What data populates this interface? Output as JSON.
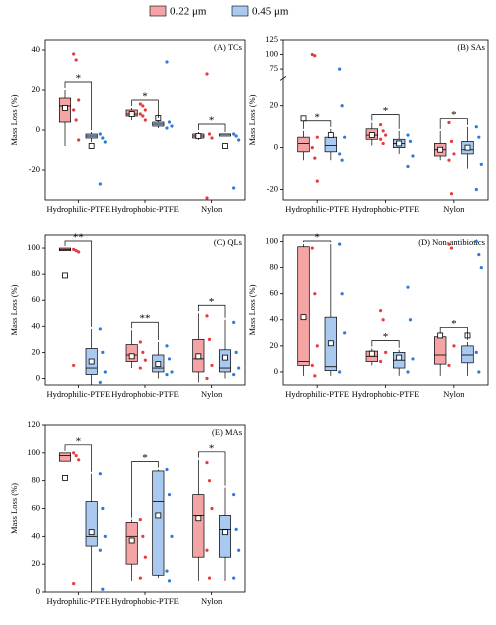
{
  "chart_data": [
    {
      "type": "box",
      "title": "(A) TCs",
      "ylabel": "Mass Loss (%)",
      "categories": [
        "Hydrophilic-PTFE",
        "Hydrophobic-PTFE",
        "Nylon"
      ],
      "ylim": [
        -35,
        45
      ],
      "yticks": [
        -20,
        0,
        20,
        40
      ],
      "significance": [
        "*",
        "*",
        "*"
      ],
      "series": [
        {
          "name": "0.22 μm",
          "color": "#e83a3a",
          "fill": "#f4a4a4",
          "boxes": [
            {
              "min": -8,
              "q1": 4,
              "median": 12,
              "q3": 16,
              "max": 20,
              "mean": 11,
              "points": [
                38,
                35,
                15,
                10,
                5,
                -5
              ]
            },
            {
              "min": 5,
              "q1": 7,
              "median": 8,
              "q3": 10,
              "max": 11,
              "mean": 8,
              "points": [
                13,
                12,
                10,
                8,
                7,
                5
              ]
            },
            {
              "min": -5,
              "q1": -4,
              "median": -3,
              "q3": -2,
              "max": -1,
              "mean": -3,
              "points": [
                28,
                -2,
                -4,
                -34
              ]
            }
          ]
        },
        {
          "name": "0.45 μm",
          "color": "#2e7bd6",
          "fill": "#a9c9f0",
          "boxes": [
            {
              "min": -6,
              "q1": -4,
              "median": -3,
              "q3": -2,
              "max": -1,
              "mean": -8,
              "points": [
                -2,
                -4,
                -6,
                -27
              ]
            },
            {
              "min": 1,
              "q1": 2,
              "median": 3,
              "q3": 4,
              "max": 5,
              "mean": 6,
              "points": [
                34,
                4,
                2,
                1
              ]
            },
            {
              "min": -3,
              "q1": -3,
              "median": -2,
              "q3": -2,
              "max": -2,
              "mean": -8,
              "points": [
                -2,
                -3,
                -5,
                -29
              ]
            }
          ]
        }
      ]
    },
    {
      "type": "box",
      "title": "(B) SAs",
      "ylabel": "Mass Loss (%)",
      "categories": [
        "Hydrophilic-PTFE",
        "Hydrophobic-PTFE",
        "Nylon"
      ],
      "ylim": [
        -25,
        125
      ],
      "ybreak": [
        30,
        70
      ],
      "yticks": [
        -20,
        0,
        20,
        75,
        100,
        125
      ],
      "significance": [
        "*",
        "*",
        "*"
      ],
      "series": [
        {
          "color": "#e83a3a",
          "fill": "#f4a4a4",
          "boxes": [
            {
              "min": -6,
              "q1": -2,
              "median": 2,
              "q3": 5,
              "max": 8,
              "mean": 14,
              "points": [
                100,
                98,
                5,
                0,
                -5,
                -16
              ]
            },
            {
              "min": 1,
              "q1": 4,
              "median": 6,
              "q3": 9,
              "max": 12,
              "mean": 6,
              "points": [
                11,
                8,
                6,
                4,
                2
              ]
            },
            {
              "min": -6,
              "q1": -4,
              "median": -1,
              "q3": 2,
              "max": 8,
              "mean": -1,
              "points": [
                12,
                3,
                -3,
                -6,
                -22
              ]
            }
          ]
        },
        {
          "color": "#2e7bd6",
          "fill": "#a9c9f0",
          "boxes": [
            {
              "min": -6,
              "q1": -2,
              "median": 1,
              "q3": 5,
              "max": 9,
              "mean": 6,
              "points": [
                75,
                20,
                5,
                -3,
                -6
              ]
            },
            {
              "min": -3,
              "q1": 0,
              "median": 2,
              "q3": 4,
              "max": 8,
              "mean": 2,
              "points": [
                6,
                3,
                -4,
                -9
              ]
            },
            {
              "min": -10,
              "q1": -3,
              "median": -1,
              "q3": 3,
              "max": 10,
              "mean": 0,
              "points": [
                10,
                5,
                -8,
                -20
              ]
            }
          ]
        }
      ]
    },
    {
      "type": "box",
      "title": "(C) QLs",
      "ylabel": "Mass Loss (%)",
      "categories": [
        "Hydrophilic-PTFE",
        "Hydrophobic-PTFE",
        "Nylon"
      ],
      "ylim": [
        -5,
        110
      ],
      "yticks": [
        0,
        20,
        40,
        60,
        80,
        100
      ],
      "significance": [
        "**",
        "**",
        "*"
      ],
      "series": [
        {
          "color": "#e83a3a",
          "fill": "#f4a4a4",
          "boxes": [
            {
              "min": 98,
              "q1": 98,
              "median": 99,
              "q3": 100,
              "max": 100,
              "mean": 79,
              "points": [
                99,
                98,
                97,
                10
              ]
            },
            {
              "min": 8,
              "q1": 13,
              "median": 18,
              "q3": 26,
              "max": 37,
              "mean": 17,
              "points": [
                28,
                20,
                14,
                8
              ]
            },
            {
              "min": -3,
              "q1": 5,
              "median": 15,
              "q3": 30,
              "max": 50,
              "mean": 17,
              "points": [
                48,
                30,
                10,
                0
              ]
            }
          ]
        },
        {
          "color": "#2e7bd6",
          "fill": "#a9c9f0",
          "boxes": [
            {
              "min": -5,
              "q1": 3,
              "median": 8,
              "q3": 23,
              "max": 38,
              "mean": 13,
              "points": [
                38,
                20,
                5,
                -3
              ]
            },
            {
              "min": 0,
              "q1": 5,
              "median": 8,
              "q3": 18,
              "max": 28,
              "mean": 11,
              "points": [
                25,
                15,
                5,
                3
              ]
            },
            {
              "min": 0,
              "q1": 5,
              "median": 8,
              "q3": 22,
              "max": 45,
              "mean": 16,
              "points": [
                43,
                20,
                8,
                3
              ]
            }
          ]
        }
      ]
    },
    {
      "type": "box",
      "title": "(D) Non-antibiotics",
      "ylabel": "Mass Loss (%)",
      "categories": [
        "Hydrophilic-PTFE",
        "Hydrophobic-PTFE",
        "Nylon"
      ],
      "ylim": [
        -10,
        105
      ],
      "yticks": [
        0,
        20,
        40,
        60,
        80,
        100
      ],
      "significance": [
        "*",
        "*",
        "*"
      ],
      "series": [
        {
          "color": "#e83a3a",
          "fill": "#f4a4a4",
          "boxes": [
            {
              "min": -3,
              "q1": 5,
              "median": 8,
              "q3": 96,
              "max": 98,
              "mean": 42,
              "points": [
                95,
                60,
                20,
                5,
                -3
              ]
            },
            {
              "min": 5,
              "q1": 8,
              "median": 12,
              "q3": 16,
              "max": 18,
              "mean": 14,
              "points": [
                47,
                40,
                15,
                8
              ]
            },
            {
              "min": -3,
              "q1": 6,
              "median": 13,
              "q3": 27,
              "max": 28,
              "mean": 28,
              "points": [
                98,
                95,
                20,
                5
              ]
            }
          ]
        },
        {
          "color": "#2e7bd6",
          "fill": "#a9c9f0",
          "boxes": [
            {
              "min": -3,
              "q1": 1,
              "median": 4,
              "q3": 42,
              "max": 98,
              "mean": 22,
              "points": [
                98,
                60,
                30,
                0
              ]
            },
            {
              "min": -3,
              "q1": 3,
              "median": 9,
              "q3": 15,
              "max": 17,
              "mean": 11,
              "points": [
                65,
                40,
                10,
                0
              ]
            },
            {
              "min": -3,
              "q1": 7,
              "median": 13,
              "q3": 20,
              "max": 23,
              "mean": 28,
              "points": [
                100,
                90,
                80,
                15,
                0
              ]
            }
          ]
        }
      ]
    },
    {
      "type": "box",
      "title": "(E) MAs",
      "ylabel": "Mass Loss (%)",
      "categories": [
        "Hydrophilic-PTFE",
        "Hydrophobic-PTFE",
        "Nylon"
      ],
      "ylim": [
        0,
        120
      ],
      "yticks": [
        0,
        20,
        40,
        60,
        80,
        100,
        120
      ],
      "significance": [
        "*",
        "*",
        "*"
      ],
      "series": [
        {
          "color": "#e83a3a",
          "fill": "#f4a4a4",
          "boxes": [
            {
              "min": 94,
              "q1": 94,
              "median": 98,
              "q3": 100,
              "max": 100,
              "mean": 82,
              "points": [
                100,
                98,
                95,
                6
              ]
            },
            {
              "min": 8,
              "q1": 20,
              "median": 40,
              "q3": 50,
              "max": 52,
              "mean": 37,
              "points": [
                52,
                40,
                25,
                10
              ]
            },
            {
              "min": 8,
              "q1": 25,
              "median": 55,
              "q3": 70,
              "max": 95,
              "mean": 53,
              "points": [
                93,
                80,
                60,
                30,
                10
              ]
            }
          ]
        },
        {
          "color": "#2e7bd6",
          "fill": "#a9c9f0",
          "boxes": [
            {
              "min": 0,
              "q1": 33,
              "median": 40,
              "q3": 65,
              "max": 85,
              "mean": 43,
              "points": [
                85,
                60,
                40,
                30,
                2
              ]
            },
            {
              "min": 10,
              "q1": 12,
              "median": 65,
              "q3": 87,
              "max": 88,
              "mean": 55,
              "points": [
                88,
                70,
                40,
                15,
                8
              ]
            },
            {
              "min": 8,
              "q1": 25,
              "median": 45,
              "q3": 55,
              "max": 75,
              "mean": 43,
              "points": [
                70,
                45,
                30,
                10
              ]
            }
          ]
        }
      ]
    }
  ]
}
